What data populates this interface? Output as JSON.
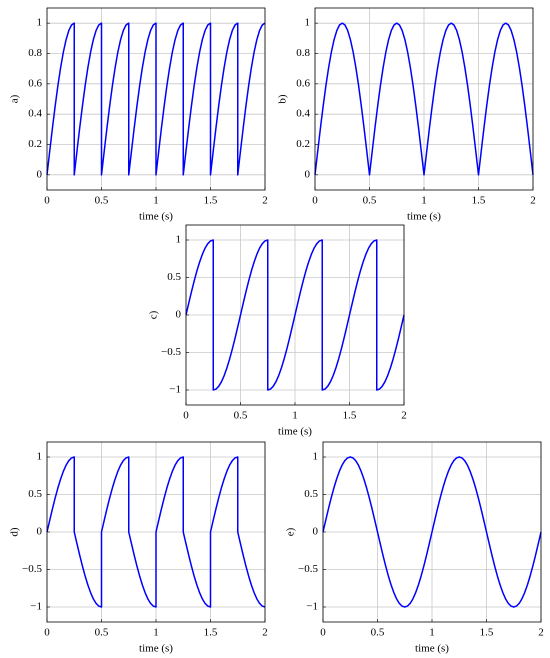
{
  "chart_data": [
    {
      "type": "line",
      "ylabel": "a)",
      "xlabel": "time (s)",
      "color": "#0000ff",
      "grid": true,
      "xlim": [
        0,
        2
      ],
      "ylim": [
        -0.1,
        1.1
      ],
      "xticks": [
        0,
        0.5,
        1,
        1.5,
        2
      ],
      "yticks": [
        0,
        0.2,
        0.4,
        0.6,
        0.8,
        1
      ],
      "x": [
        0,
        0.025,
        0.05,
        0.075,
        0.1,
        0.125,
        0.15,
        0.175,
        0.2,
        0.225,
        0.25,
        0.25,
        0.275,
        0.3,
        0.325,
        0.35,
        0.375,
        0.4,
        0.425,
        0.45,
        0.475,
        0.5,
        0.5,
        0.525,
        0.55,
        0.575,
        0.6,
        0.625,
        0.65,
        0.675,
        0.7,
        0.725,
        0.75,
        0.75,
        0.775,
        0.8,
        0.825,
        0.85,
        0.875,
        0.9,
        0.925,
        0.95,
        0.975,
        1,
        1,
        1.025,
        1.05,
        1.075,
        1.1,
        1.125,
        1.15,
        1.175,
        1.2,
        1.225,
        1.25,
        1.25,
        1.275,
        1.3,
        1.325,
        1.35,
        1.375,
        1.4,
        1.425,
        1.45,
        1.475,
        1.5,
        1.5,
        1.525,
        1.55,
        1.575,
        1.6,
        1.625,
        1.65,
        1.675,
        1.7,
        1.725,
        1.75,
        1.75,
        1.775,
        1.8,
        1.825,
        1.85,
        1.875,
        1.9,
        1.925,
        1.95,
        1.975,
        2
      ],
      "values": [
        0,
        0.156,
        0.309,
        0.454,
        0.588,
        0.707,
        0.809,
        0.891,
        0.951,
        0.988,
        1,
        0,
        0.156,
        0.309,
        0.454,
        0.588,
        0.707,
        0.809,
        0.891,
        0.951,
        0.988,
        1,
        0,
        0.156,
        0.309,
        0.454,
        0.588,
        0.707,
        0.809,
        0.891,
        0.951,
        0.988,
        1,
        0,
        0.156,
        0.309,
        0.454,
        0.588,
        0.707,
        0.809,
        0.891,
        0.951,
        0.988,
        1,
        0,
        0.156,
        0.309,
        0.454,
        0.588,
        0.707,
        0.809,
        0.891,
        0.951,
        0.988,
        1,
        0,
        0.156,
        0.309,
        0.454,
        0.588,
        0.707,
        0.809,
        0.891,
        0.951,
        0.988,
        1,
        0,
        0.156,
        0.309,
        0.454,
        0.588,
        0.707,
        0.809,
        0.891,
        0.951,
        0.988,
        1,
        0,
        0.156,
        0.309,
        0.454,
        0.588,
        0.707,
        0.809,
        0.891,
        0.951,
        0.988,
        1
      ]
    },
    {
      "type": "line",
      "ylabel": "b)",
      "xlabel": "time (s)",
      "color": "#0000ff",
      "grid": true,
      "xlim": [
        0,
        2
      ],
      "ylim": [
        -0.1,
        1.1
      ],
      "xticks": [
        0,
        0.5,
        1,
        1.5,
        2
      ],
      "yticks": [
        0,
        0.2,
        0.4,
        0.6,
        0.8,
        1
      ],
      "x": [
        0,
        0.025,
        0.05,
        0.075,
        0.1,
        0.125,
        0.15,
        0.175,
        0.2,
        0.225,
        0.25,
        0.275,
        0.3,
        0.325,
        0.35,
        0.375,
        0.4,
        0.425,
        0.45,
        0.475,
        0.5,
        0.525,
        0.55,
        0.575,
        0.6,
        0.625,
        0.65,
        0.675,
        0.7,
        0.725,
        0.75,
        0.775,
        0.8,
        0.825,
        0.85,
        0.875,
        0.9,
        0.925,
        0.95,
        0.975,
        1,
        1.025,
        1.05,
        1.075,
        1.1,
        1.125,
        1.15,
        1.175,
        1.2,
        1.225,
        1.25,
        1.275,
        1.3,
        1.325,
        1.35,
        1.375,
        1.4,
        1.425,
        1.45,
        1.475,
        1.5,
        1.525,
        1.55,
        1.575,
        1.6,
        1.625,
        1.65,
        1.675,
        1.7,
        1.725,
        1.75,
        1.775,
        1.8,
        1.825,
        1.85,
        1.875,
        1.9,
        1.925,
        1.95,
        1.975,
        2
      ],
      "values": [
        0,
        0.156,
        0.309,
        0.454,
        0.588,
        0.707,
        0.809,
        0.891,
        0.951,
        0.988,
        1,
        0.988,
        0.951,
        0.891,
        0.809,
        0.707,
        0.588,
        0.454,
        0.309,
        0.156,
        0,
        0.156,
        0.309,
        0.454,
        0.588,
        0.707,
        0.809,
        0.891,
        0.951,
        0.988,
        1,
        0.988,
        0.951,
        0.891,
        0.809,
        0.707,
        0.588,
        0.454,
        0.309,
        0.156,
        0,
        0.156,
        0.309,
        0.454,
        0.588,
        0.707,
        0.809,
        0.891,
        0.951,
        0.988,
        1,
        0.988,
        0.951,
        0.891,
        0.809,
        0.707,
        0.588,
        0.454,
        0.309,
        0.156,
        0,
        0.156,
        0.309,
        0.454,
        0.588,
        0.707,
        0.809,
        0.891,
        0.951,
        0.988,
        1,
        0.988,
        0.951,
        0.891,
        0.809,
        0.707,
        0.588,
        0.454,
        0.309,
        0.156,
        0
      ]
    },
    {
      "type": "line",
      "ylabel": "c)",
      "xlabel": "time (s)",
      "color": "#0000ff",
      "grid": true,
      "xlim": [
        0,
        2
      ],
      "ylim": [
        -1.2,
        1.2
      ],
      "xticks": [
        0,
        0.5,
        1,
        1.5,
        2
      ],
      "yticks": [
        {
          "value": -1,
          "label": "−1"
        },
        {
          "value": -0.5,
          "label": "−0.5"
        },
        0,
        0.5,
        1
      ],
      "x": [
        0,
        0.025,
        0.05,
        0.075,
        0.1,
        0.125,
        0.15,
        0.175,
        0.2,
        0.225,
        0.25,
        0.25,
        0.275,
        0.3,
        0.325,
        0.35,
        0.375,
        0.4,
        0.425,
        0.45,
        0.475,
        0.5,
        0.525,
        0.55,
        0.575,
        0.6,
        0.625,
        0.65,
        0.675,
        0.7,
        0.725,
        0.75,
        0.75,
        0.775,
        0.8,
        0.825,
        0.85,
        0.875,
        0.9,
        0.925,
        0.95,
        0.975,
        1,
        1.025,
        1.05,
        1.075,
        1.1,
        1.125,
        1.15,
        1.175,
        1.2,
        1.225,
        1.25,
        1.25,
        1.275,
        1.3,
        1.325,
        1.35,
        1.375,
        1.4,
        1.425,
        1.45,
        1.475,
        1.5,
        1.525,
        1.55,
        1.575,
        1.6,
        1.625,
        1.65,
        1.675,
        1.7,
        1.725,
        1.75,
        1.75,
        1.775,
        1.8,
        1.825,
        1.85,
        1.875,
        1.9,
        1.925,
        1.95,
        1.975,
        2
      ],
      "values": [
        0,
        0.156,
        0.309,
        0.454,
        0.588,
        0.707,
        0.809,
        0.891,
        0.951,
        0.988,
        1,
        -1,
        -0.988,
        -0.951,
        -0.891,
        -0.809,
        -0.707,
        -0.588,
        -0.454,
        -0.309,
        -0.156,
        0,
        0.156,
        0.309,
        0.454,
        0.588,
        0.707,
        0.809,
        0.891,
        0.951,
        0.988,
        1,
        -1,
        -0.988,
        -0.951,
        -0.891,
        -0.809,
        -0.707,
        -0.588,
        -0.454,
        -0.309,
        -0.156,
        0,
        0.156,
        0.309,
        0.454,
        0.588,
        0.707,
        0.809,
        0.891,
        0.951,
        0.988,
        1,
        -1,
        -0.988,
        -0.951,
        -0.891,
        -0.809,
        -0.707,
        -0.588,
        -0.454,
        -0.309,
        -0.156,
        0,
        0.156,
        0.309,
        0.454,
        0.588,
        0.707,
        0.809,
        0.891,
        0.951,
        0.988,
        1,
        -1,
        -0.988,
        -0.951,
        -0.891,
        -0.809,
        -0.707,
        -0.588,
        -0.454,
        -0.309,
        -0.156,
        0
      ]
    },
    {
      "type": "line",
      "ylabel": "d)",
      "xlabel": "time (s)",
      "color": "#0000ff",
      "grid": true,
      "xlim": [
        0,
        2
      ],
      "ylim": [
        -1.2,
        1.2
      ],
      "xticks": [
        0,
        0.5,
        1,
        1.5,
        2
      ],
      "yticks": [
        {
          "value": -1,
          "label": "−1"
        },
        {
          "value": -0.5,
          "label": "−0.5"
        },
        0,
        0.5,
        1
      ],
      "x": [
        0,
        0.025,
        0.05,
        0.075,
        0.1,
        0.125,
        0.15,
        0.175,
        0.2,
        0.225,
        0.25,
        0.25,
        0.275,
        0.3,
        0.325,
        0.35,
        0.375,
        0.4,
        0.425,
        0.45,
        0.475,
        0.5,
        0.5,
        0.525,
        0.55,
        0.575,
        0.6,
        0.625,
        0.65,
        0.675,
        0.7,
        0.725,
        0.75,
        0.75,
        0.775,
        0.8,
        0.825,
        0.85,
        0.875,
        0.9,
        0.925,
        0.95,
        0.975,
        1,
        1,
        1.025,
        1.05,
        1.075,
        1.1,
        1.125,
        1.15,
        1.175,
        1.2,
        1.225,
        1.25,
        1.25,
        1.275,
        1.3,
        1.325,
        1.35,
        1.375,
        1.4,
        1.425,
        1.45,
        1.475,
        1.5,
        1.5,
        1.525,
        1.55,
        1.575,
        1.6,
        1.625,
        1.65,
        1.675,
        1.7,
        1.725,
        1.75,
        1.75,
        1.775,
        1.8,
        1.825,
        1.85,
        1.875,
        1.9,
        1.925,
        1.95,
        1.975,
        2
      ],
      "values": [
        0,
        0.156,
        0.309,
        0.454,
        0.588,
        0.707,
        0.809,
        0.891,
        0.951,
        0.988,
        1,
        0,
        -0.156,
        -0.309,
        -0.454,
        -0.588,
        -0.707,
        -0.809,
        -0.891,
        -0.951,
        -0.988,
        -1,
        0,
        0.156,
        0.309,
        0.454,
        0.588,
        0.707,
        0.809,
        0.891,
        0.951,
        0.988,
        1,
        0,
        -0.156,
        -0.309,
        -0.454,
        -0.588,
        -0.707,
        -0.809,
        -0.891,
        -0.951,
        -0.988,
        -1,
        0,
        0.156,
        0.309,
        0.454,
        0.588,
        0.707,
        0.809,
        0.891,
        0.951,
        0.988,
        1,
        0,
        -0.156,
        -0.309,
        -0.454,
        -0.588,
        -0.707,
        -0.809,
        -0.891,
        -0.951,
        -0.988,
        -1,
        0,
        0.156,
        0.309,
        0.454,
        0.588,
        0.707,
        0.809,
        0.891,
        0.951,
        0.988,
        1,
        0,
        -0.156,
        -0.309,
        -0.454,
        -0.588,
        -0.707,
        -0.809,
        -0.891,
        -0.951,
        -0.988,
        -1
      ]
    },
    {
      "type": "line",
      "ylabel": "e)",
      "xlabel": "time (s)",
      "color": "#0000ff",
      "grid": true,
      "xlim": [
        0,
        2
      ],
      "ylim": [
        -1.2,
        1.2
      ],
      "xticks": [
        0,
        0.5,
        1,
        1.5,
        2
      ],
      "yticks": [
        {
          "value": -1,
          "label": "−1"
        },
        {
          "value": -0.5,
          "label": "−0.5"
        },
        0,
        0.5,
        1
      ],
      "x": [
        0,
        0.025,
        0.05,
        0.075,
        0.1,
        0.125,
        0.15,
        0.175,
        0.2,
        0.225,
        0.25,
        0.275,
        0.3,
        0.325,
        0.35,
        0.375,
        0.4,
        0.425,
        0.45,
        0.475,
        0.5,
        0.525,
        0.55,
        0.575,
        0.6,
        0.625,
        0.65,
        0.675,
        0.7,
        0.725,
        0.75,
        0.775,
        0.8,
        0.825,
        0.85,
        0.875,
        0.9,
        0.925,
        0.95,
        0.975,
        1,
        1.025,
        1.05,
        1.075,
        1.1,
        1.125,
        1.15,
        1.175,
        1.2,
        1.225,
        1.25,
        1.275,
        1.3,
        1.325,
        1.35,
        1.375,
        1.4,
        1.425,
        1.45,
        1.475,
        1.5,
        1.525,
        1.55,
        1.575,
        1.6,
        1.625,
        1.65,
        1.675,
        1.7,
        1.725,
        1.75,
        1.775,
        1.8,
        1.825,
        1.85,
        1.875,
        1.9,
        1.925,
        1.95,
        1.975,
        2
      ],
      "values": [
        0,
        0.156,
        0.309,
        0.454,
        0.588,
        0.707,
        0.809,
        0.891,
        0.951,
        0.988,
        1,
        0.988,
        0.951,
        0.891,
        0.809,
        0.707,
        0.588,
        0.454,
        0.309,
        0.156,
        0,
        -0.156,
        -0.309,
        -0.454,
        -0.588,
        -0.707,
        -0.809,
        -0.891,
        -0.951,
        -0.988,
        -1,
        -0.988,
        -0.951,
        -0.891,
        -0.809,
        -0.707,
        -0.588,
        -0.454,
        -0.309,
        -0.156,
        0,
        0.156,
        0.309,
        0.454,
        0.588,
        0.707,
        0.809,
        0.891,
        0.951,
        0.988,
        1,
        0.988,
        0.951,
        0.891,
        0.809,
        0.707,
        0.588,
        0.454,
        0.309,
        0.156,
        0,
        -0.156,
        -0.309,
        -0.454,
        -0.588,
        -0.707,
        -0.809,
        -0.891,
        -0.951,
        -0.988,
        -1,
        -0.988,
        -0.951,
        -0.891,
        -0.809,
        -0.707,
        -0.588,
        -0.454,
        -0.309,
        -0.156,
        0
      ]
    }
  ]
}
